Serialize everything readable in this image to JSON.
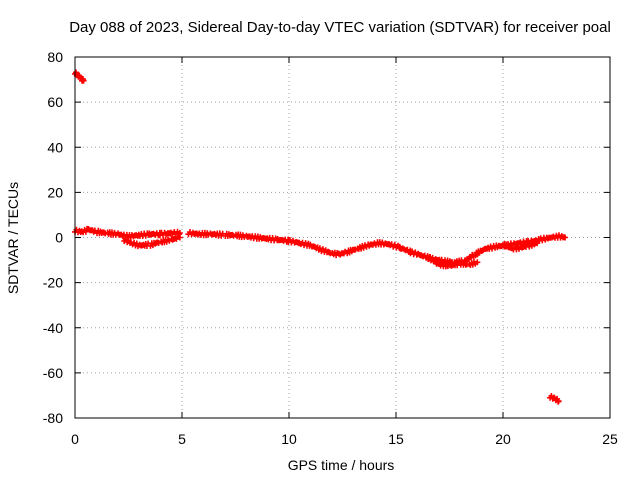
{
  "chart_data": {
    "type": "scatter",
    "title": "Day 088 of 2023, Sidereal Day-to-day VTEC variation (SDTVAR) for receiver poal",
    "xlabel": "GPS time / hours",
    "ylabel": "SDTVAR / TECUs",
    "xlim": [
      0,
      25
    ],
    "ylim": [
      -80,
      80
    ],
    "xticks": [
      0,
      5,
      10,
      15,
      20,
      25
    ],
    "yticks": [
      -80,
      -60,
      -40,
      -20,
      0,
      20,
      40,
      60,
      80
    ],
    "grid": true,
    "marker": "+",
    "color": "#ff0000",
    "series": [
      {
        "name": "SDTVAR",
        "segments": [
          [
            [
              0.0,
              73
            ],
            [
              0.1,
              72
            ],
            [
              0.2,
              71
            ],
            [
              0.3,
              70
            ],
            [
              0.4,
              69.5
            ]
          ],
          [
            [
              0.0,
              3
            ],
            [
              0.3,
              2.5
            ],
            [
              0.6,
              3.5
            ],
            [
              1.0,
              2.5
            ],
            [
              1.5,
              2
            ],
            [
              2.0,
              1.5
            ],
            [
              2.5,
              0.5
            ],
            [
              3.0,
              1
            ],
            [
              3.5,
              1.5
            ],
            [
              4.0,
              1.5
            ],
            [
              4.5,
              2
            ],
            [
              4.9,
              2
            ]
          ],
          [
            [
              2.3,
              -1
            ],
            [
              2.6,
              -2.5
            ],
            [
              3.0,
              -3.5
            ],
            [
              3.5,
              -3.2
            ],
            [
              4.0,
              -2
            ],
            [
              4.5,
              -1
            ],
            [
              4.9,
              0
            ]
          ],
          [
            [
              5.3,
              2
            ],
            [
              5.8,
              1.5
            ],
            [
              6.3,
              1.5
            ],
            [
              7.0,
              1.2
            ],
            [
              7.5,
              1
            ],
            [
              8.0,
              0.5
            ],
            [
              8.5,
              0
            ],
            [
              9.0,
              -0.5
            ],
            [
              9.5,
              -1
            ],
            [
              10.0,
              -1.5
            ],
            [
              10.5,
              -2.5
            ],
            [
              11.0,
              -3.5
            ],
            [
              11.5,
              -5.5
            ],
            [
              12.0,
              -7
            ],
            [
              12.3,
              -7.5
            ],
            [
              12.7,
              -6.5
            ],
            [
              13.2,
              -5
            ],
            [
              13.7,
              -3.5
            ],
            [
              14.2,
              -2.5
            ],
            [
              14.7,
              -3
            ],
            [
              15.2,
              -4.5
            ],
            [
              15.7,
              -6.5
            ],
            [
              16.2,
              -8
            ],
            [
              16.7,
              -9.5
            ],
            [
              17.2,
              -10.5
            ],
            [
              17.7,
              -11
            ],
            [
              18.2,
              -10.5
            ],
            [
              18.7,
              -7.5
            ],
            [
              19.2,
              -5
            ],
            [
              19.7,
              -4
            ],
            [
              20.2,
              -3.5
            ],
            [
              20.7,
              -2.5
            ],
            [
              21.2,
              -2
            ],
            [
              21.7,
              -1
            ],
            [
              22.2,
              0
            ],
            [
              22.6,
              0.5
            ],
            [
              22.9,
              0
            ]
          ],
          [
            [
              16.5,
              -9
            ],
            [
              17.0,
              -12
            ],
            [
              17.5,
              -12.5
            ],
            [
              18.0,
              -11.5
            ],
            [
              18.4,
              -12
            ],
            [
              18.8,
              -11
            ]
          ],
          [
            [
              20.0,
              -3
            ],
            [
              20.4,
              -5
            ],
            [
              20.8,
              -4.5
            ],
            [
              21.2,
              -3.5
            ],
            [
              21.6,
              -2.5
            ]
          ],
          [
            [
              22.2,
              -70.5
            ],
            [
              22.4,
              -71.5
            ],
            [
              22.6,
              -72.5
            ]
          ]
        ]
      }
    ]
  }
}
